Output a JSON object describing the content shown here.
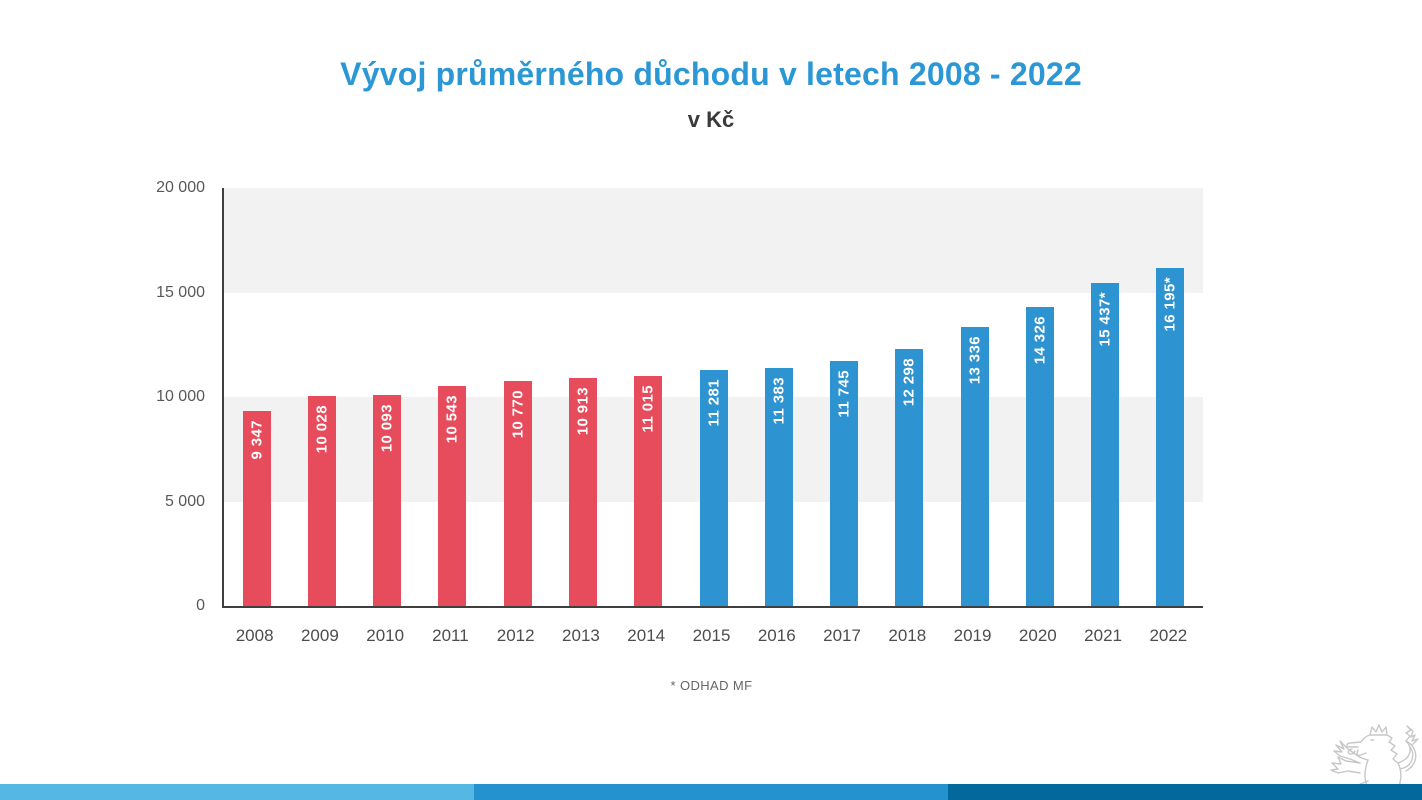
{
  "title": "Vývoj průměrného důchodu v letech 2008 - 2022",
  "subtitle": "v Kč",
  "footnote": "* ODHAD MF",
  "colors": {
    "title": "#2b97d4",
    "bar_red": "#e64c5b",
    "bar_blue": "#2e93d1",
    "band": "#f2f2f2",
    "axis": "#3f3f3f",
    "stripe_light": "#55b7e3",
    "stripe_medium": "#2492cf",
    "stripe_dark": "#03689c",
    "lion_outline": "#c7c7c7"
  },
  "chart_data": {
    "type": "bar",
    "title": "Vývoj průměrného důchodu v letech 2008 - 2022",
    "subtitle": "v Kč",
    "unit": "Kč",
    "categories": [
      "2008",
      "2009",
      "2010",
      "2011",
      "2012",
      "2013",
      "2014",
      "2015",
      "2016",
      "2017",
      "2018",
      "2019",
      "2020",
      "2021",
      "2022"
    ],
    "values": [
      9347,
      10028,
      10093,
      10543,
      10770,
      10913,
      11015,
      11281,
      11383,
      11745,
      12298,
      13336,
      14326,
      15437,
      16195
    ],
    "bar_labels": [
      "9 347",
      "10 028",
      "10 093",
      "10 543",
      "10 770",
      "10 913",
      "11 015",
      "11 281",
      "11 383",
      "11 745",
      "12 298",
      "13 336",
      "14 326",
      "15 437*",
      "16 195*"
    ],
    "bar_color_keys": [
      "red",
      "red",
      "red",
      "red",
      "red",
      "red",
      "red",
      "blue",
      "blue",
      "blue",
      "blue",
      "blue",
      "blue",
      "blue",
      "blue"
    ],
    "ylim": [
      0,
      20000
    ],
    "yticks": [
      0,
      5000,
      10000,
      15000,
      20000
    ],
    "ytick_labels": [
      "0",
      "5 000",
      "10 000",
      "15 000",
      "20 000"
    ],
    "grid_bands": [
      [
        15000,
        20000
      ],
      [
        5000,
        10000
      ]
    ],
    "grid": "horizontal-bands",
    "legend": "none",
    "footnote": "* ODHAD MF"
  },
  "footer": {
    "stripe_segments": [
      "light",
      "medium",
      "dark"
    ]
  },
  "logo": {
    "name": "czech-lion"
  }
}
